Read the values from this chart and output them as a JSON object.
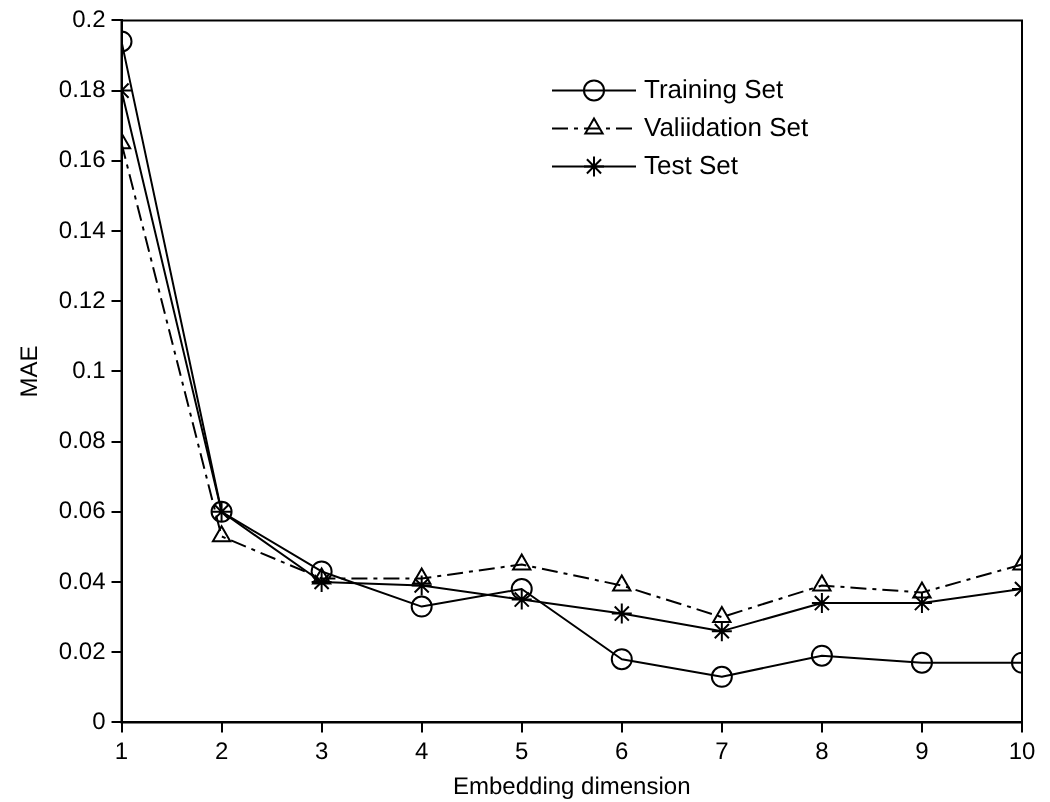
{
  "chart_data": {
    "type": "line",
    "xlabel": "Embedding dimension",
    "ylabel": "MAE",
    "x": [
      1,
      2,
      3,
      4,
      5,
      6,
      7,
      8,
      9,
      10
    ],
    "xlim": [
      1,
      10
    ],
    "xticks": [
      1,
      2,
      3,
      4,
      5,
      6,
      7,
      8,
      9,
      10
    ],
    "ylim": [
      0,
      0.2
    ],
    "yticks": [
      0,
      0.02,
      0.04,
      0.06,
      0.08,
      0.1,
      0.12,
      0.14,
      0.16,
      0.18,
      0.2
    ],
    "grid": false,
    "legend": "top right",
    "series": [
      {
        "name": "Training Set",
        "color": "#000000",
        "marker": "circle",
        "line_style": "solid",
        "values": [
          0.194,
          0.06,
          0.043,
          0.033,
          0.038,
          0.018,
          0.013,
          0.019,
          0.017,
          0.017
        ]
      },
      {
        "name": "Valiidation Set",
        "color": "#000000",
        "marker": "triangle",
        "line_style": "dashed",
        "values": [
          0.165,
          0.053,
          0.041,
          0.041,
          0.045,
          0.039,
          0.03,
          0.039,
          0.037,
          0.045
        ]
      },
      {
        "name": "Test Set",
        "color": "#000000",
        "marker": "cross",
        "line_style": "solid",
        "values": [
          0.18,
          0.06,
          0.04,
          0.039,
          0.035,
          0.031,
          0.026,
          0.034,
          0.034,
          0.038
        ]
      }
    ]
  }
}
